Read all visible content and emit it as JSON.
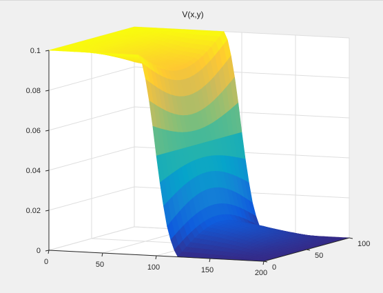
{
  "chart_data": {
    "type": "surface",
    "title": "V(x,y)",
    "xlabel": "",
    "ylabel": "",
    "zlabel": "",
    "x_ticks": [
      "0",
      "50",
      "100",
      "150",
      "200"
    ],
    "y_ticks": [
      "0",
      "50",
      "100"
    ],
    "z_ticks": [
      "0",
      "0.02",
      "0.04",
      "0.06",
      "0.08",
      "0.1"
    ],
    "xlim": [
      0,
      200
    ],
    "ylim": [
      0,
      100
    ],
    "zlim": [
      0,
      0.1
    ],
    "grid": true,
    "colormap": "parula",
    "surface": {
      "description_values": {
        "x_left_plateau_end": 85,
        "x_right_plateau_start": 120,
        "v_left": 0.1,
        "v_right": 0.0,
        "v_mid_left_edge_max": 0.09,
        "v_mid_right_edge_min": 0.012
      },
      "profile_x": [
        0,
        20,
        40,
        60,
        80,
        85,
        90,
        95,
        100,
        105,
        110,
        115,
        120,
        140,
        160,
        180,
        200
      ],
      "profile_v_edge": [
        0.1,
        0.1,
        0.1,
        0.1,
        0.1,
        0.1,
        0.088,
        0.072,
        0.05,
        0.03,
        0.015,
        0.005,
        0.0,
        0.0,
        0.0,
        0.0,
        0.0
      ],
      "profile_v_center": [
        0.1,
        0.098,
        0.094,
        0.09,
        0.088,
        0.086,
        0.074,
        0.06,
        0.05,
        0.04,
        0.028,
        0.016,
        0.012,
        0.01,
        0.007,
        0.003,
        0.0
      ]
    }
  }
}
